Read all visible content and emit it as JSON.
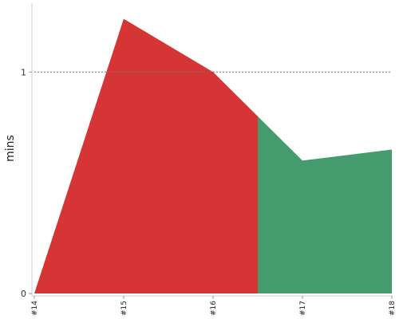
{
  "chart_data": {
    "type": "area",
    "x_categories": [
      "#14",
      "#15",
      "#16",
      "#17",
      "#18"
    ],
    "series": [
      {
        "color": "#d63536",
        "points": [
          {
            "x": 0,
            "y": 0
          },
          {
            "x": 1,
            "y": 1.24
          },
          {
            "x": 2,
            "y": 1.0
          },
          {
            "x": 2.5,
            "y": 0.8
          }
        ]
      },
      {
        "color": "#449b6e",
        "points": [
          {
            "x": 2.5,
            "y": 0.8
          },
          {
            "x": 3,
            "y": 0.6
          },
          {
            "x": 4,
            "y": 0.65
          }
        ]
      }
    ],
    "ylabel": "mins",
    "xlabel": "",
    "y_ticks": [
      0,
      1
    ],
    "y_tick_labels": [
      "0",
      "1"
    ],
    "ylim": [
      0,
      1.3
    ],
    "reference_line": {
      "y": 1,
      "style": "dotted"
    },
    "grid": false
  }
}
